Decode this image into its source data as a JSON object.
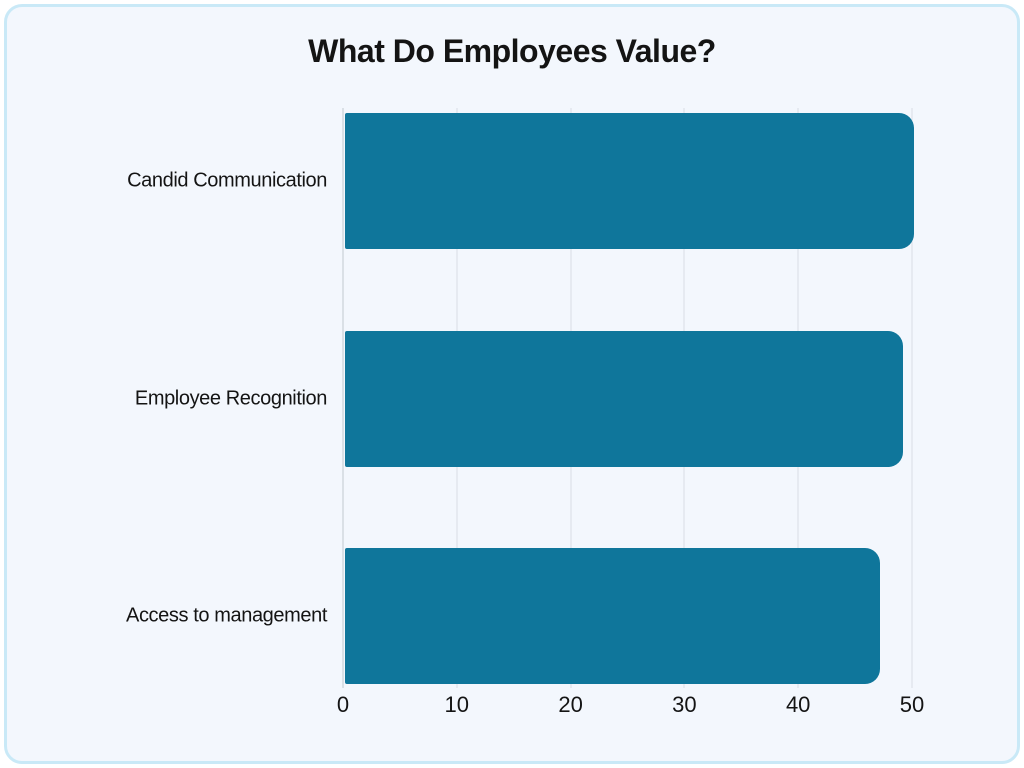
{
  "page": {
    "background_color": "#ffffff",
    "panel_background_color": "#f3f7fd",
    "panel_border_color": "#c9e9f7"
  },
  "chart_data": {
    "type": "bar",
    "orientation": "horizontal",
    "title": "What Do Employees Value?",
    "categories": [
      "Candid Communication",
      "Employee Recognition",
      "Access to management"
    ],
    "values": [
      50,
      49,
      47
    ],
    "xlabel": "",
    "ylabel": "",
    "xlim": [
      0,
      50
    ],
    "xticks": [
      "0",
      "10",
      "20",
      "30",
      "40",
      "50"
    ],
    "grid": true,
    "legend": false,
    "bar_color": "#0f769b",
    "gridline_color": "#d9dee5",
    "axis_line_color": "#c2c8ce",
    "text_color": "#141414"
  }
}
